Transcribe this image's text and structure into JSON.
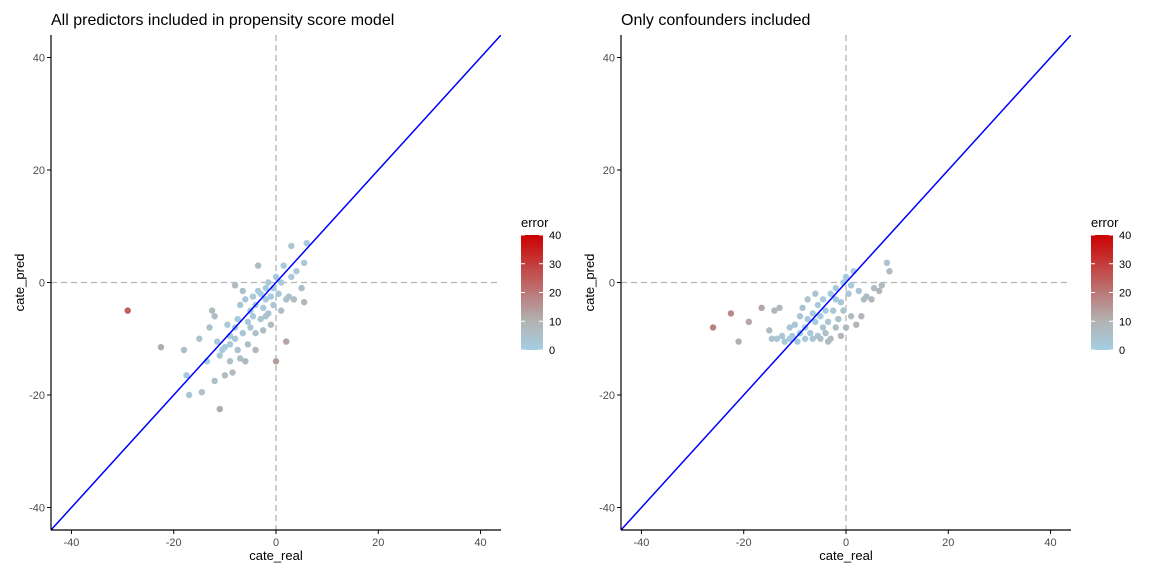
{
  "colors": {
    "low": "#a6cee3",
    "mid": "#b3b3b3",
    "high": "#cc0000",
    "identity_line": "#0000ff",
    "ref_line": "#b3b3b3",
    "axis": "#000000",
    "tick_text": "#4d4d4d"
  },
  "chart_data": [
    {
      "type": "scatter",
      "title": "All predictors included in propensity score model",
      "xlabel": "cate_real",
      "ylabel": "cate_pred",
      "xlim": [
        -44,
        44
      ],
      "ylim": [
        -44,
        44
      ],
      "xticks": [
        -40,
        -20,
        0,
        20,
        40
      ],
      "yticks": [
        -40,
        -20,
        0,
        20,
        40
      ],
      "grid": false,
      "reference_lines": {
        "identity": "y = x",
        "vertical_dashed": 0,
        "horizontal_dashed": 0
      },
      "legend": {
        "title": "error",
        "position": "right",
        "scale": "continuous",
        "ticks": [
          0,
          10,
          20,
          30,
          40
        ]
      },
      "points": [
        [
          -29,
          -5
        ],
        [
          -22.5,
          -11.5
        ],
        [
          -18,
          -12
        ],
        [
          -17.5,
          -16.5
        ],
        [
          -17,
          -20
        ],
        [
          -14.5,
          -19.5
        ],
        [
          -13.5,
          -14
        ],
        [
          -13,
          -8
        ],
        [
          -12.5,
          -5
        ],
        [
          -12,
          -17.5
        ],
        [
          -11.5,
          -10.5
        ],
        [
          -11,
          -13
        ],
        [
          -11,
          -22.5
        ],
        [
          -10.5,
          -12
        ],
        [
          -10,
          -11.5
        ],
        [
          -10,
          -16.5
        ],
        [
          -9.5,
          -7.5
        ],
        [
          -9,
          -9.5
        ],
        [
          -9,
          -14
        ],
        [
          -8.5,
          -16
        ],
        [
          -8,
          -0.5
        ],
        [
          -8,
          -8
        ],
        [
          -8,
          -10
        ],
        [
          -7.5,
          -6.5
        ],
        [
          -7.5,
          -12
        ],
        [
          -7,
          -13.5
        ],
        [
          -7,
          -4
        ],
        [
          -6.5,
          -1.5
        ],
        [
          -6.5,
          -9
        ],
        [
          -6,
          -14
        ],
        [
          -6,
          -3
        ],
        [
          -5.5,
          -7
        ],
        [
          -5.5,
          -11
        ],
        [
          -5,
          -5
        ],
        [
          -5,
          -8
        ],
        [
          -4.5,
          -2.5
        ],
        [
          -4.5,
          -6
        ],
        [
          -4,
          -9
        ],
        [
          -4,
          -4
        ],
        [
          -3.5,
          -1.5
        ],
        [
          -3.5,
          3
        ],
        [
          -3,
          -6.5
        ],
        [
          -3,
          -2
        ],
        [
          -2.5,
          -4.5
        ],
        [
          -2.5,
          -8.5
        ],
        [
          -2,
          -1
        ],
        [
          -2,
          -3
        ],
        [
          -1.5,
          -5.5
        ],
        [
          -1.5,
          0
        ],
        [
          -1,
          -2.5
        ],
        [
          -1,
          -7.5
        ],
        [
          -0.5,
          -1
        ],
        [
          -0.5,
          -4
        ],
        [
          0,
          -14
        ],
        [
          0,
          1
        ],
        [
          0.5,
          -2
        ],
        [
          1,
          0
        ],
        [
          1,
          -5
        ],
        [
          1.5,
          3
        ],
        [
          2,
          -3
        ],
        [
          2,
          -10.5
        ],
        [
          2.5,
          -2.5
        ],
        [
          3,
          6.5
        ],
        [
          3,
          1
        ],
        [
          3.5,
          -3
        ],
        [
          4,
          2
        ],
        [
          5,
          -1
        ],
        [
          5.5,
          -3.5
        ],
        [
          5.5,
          3.5
        ],
        [
          6,
          7
        ],
        [
          -4,
          -12
        ],
        [
          -9,
          -11
        ],
        [
          -15,
          -10
        ],
        [
          -12,
          -6
        ],
        [
          -2,
          -6
        ]
      ]
    },
    {
      "type": "scatter",
      "title": "Only confounders included",
      "xlabel": "cate_real",
      "ylabel": "cate_pred",
      "xlim": [
        -44,
        44
      ],
      "ylim": [
        -44,
        44
      ],
      "xticks": [
        -40,
        -20,
        0,
        20,
        40
      ],
      "yticks": [
        -40,
        -20,
        0,
        20,
        40
      ],
      "grid": false,
      "reference_lines": {
        "identity": "y = x",
        "vertical_dashed": 0,
        "horizontal_dashed": 0
      },
      "legend": {
        "title": "error",
        "position": "right",
        "scale": "continuous",
        "ticks": [
          0,
          10,
          20,
          30,
          40
        ]
      },
      "points": [
        [
          -26,
          -8
        ],
        [
          -22.5,
          -5.5
        ],
        [
          -21,
          -10.5
        ],
        [
          -19,
          -7
        ],
        [
          -16.5,
          -4.5
        ],
        [
          -15,
          -8.5
        ],
        [
          -14.5,
          -10
        ],
        [
          -14,
          -5
        ],
        [
          -13.5,
          -10
        ],
        [
          -13,
          -4.5
        ],
        [
          -12.5,
          -9.5
        ],
        [
          -12,
          -10.5
        ],
        [
          -11,
          -8
        ],
        [
          -11,
          -10
        ],
        [
          -10.5,
          -9.5
        ],
        [
          -10,
          -7.5
        ],
        [
          -9.5,
          -10.5
        ],
        [
          -9,
          -6
        ],
        [
          -9,
          -9
        ],
        [
          -8.5,
          -4.5
        ],
        [
          -8,
          -8
        ],
        [
          -8,
          -10
        ],
        [
          -7.5,
          -6.5
        ],
        [
          -7.5,
          -3
        ],
        [
          -7,
          -9
        ],
        [
          -6.5,
          -5.5
        ],
        [
          -6.5,
          -10
        ],
        [
          -6,
          -7
        ],
        [
          -5.5,
          -4
        ],
        [
          -5.5,
          -9.5
        ],
        [
          -5,
          -6
        ],
        [
          -5,
          -10
        ],
        [
          -4.5,
          -3
        ],
        [
          -4.5,
          -8
        ],
        [
          -4,
          -5
        ],
        [
          -4,
          -9
        ],
        [
          -3.5,
          -7
        ],
        [
          -3,
          -2
        ],
        [
          -3,
          -10
        ],
        [
          -2.5,
          -5
        ],
        [
          -2,
          -8
        ],
        [
          -2,
          -1
        ],
        [
          -1.5,
          -6.5
        ],
        [
          -1,
          -3.5
        ],
        [
          -1,
          -9.5
        ],
        [
          -0.5,
          0
        ],
        [
          -0.5,
          -5
        ],
        [
          0,
          -8
        ],
        [
          0,
          1
        ],
        [
          0.5,
          -2
        ],
        [
          1,
          -6
        ],
        [
          1,
          -0.5
        ],
        [
          1.5,
          2
        ],
        [
          2,
          -7.5
        ],
        [
          2.5,
          -1.5
        ],
        [
          3,
          -6
        ],
        [
          3.5,
          -3
        ],
        [
          4,
          -2.5
        ],
        [
          5,
          -3
        ],
        [
          5.5,
          -1
        ],
        [
          6.5,
          -1.5
        ],
        [
          7,
          -0.5
        ],
        [
          8,
          3.5
        ],
        [
          8.5,
          2
        ],
        [
          -2,
          -3
        ],
        [
          -6,
          -2
        ],
        [
          -3.5,
          -10.5
        ]
      ]
    }
  ]
}
